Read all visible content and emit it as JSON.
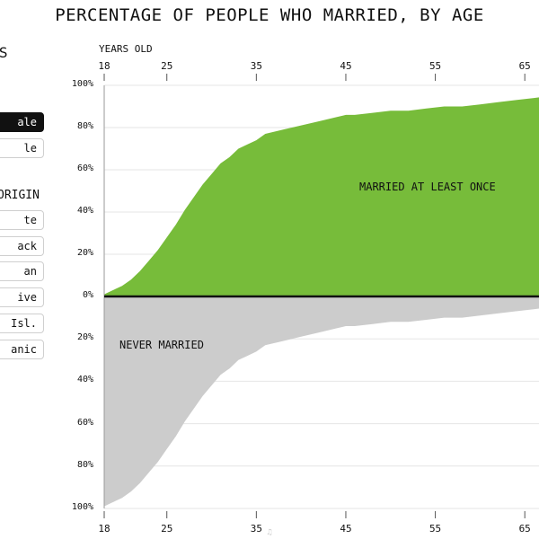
{
  "title": "PERCENTAGE OF PEOPLE WHO MARRIED, BY AGE",
  "sidebar": {
    "states_heading": "ATES",
    "sex_buttons": [
      {
        "label": "ale",
        "selected": true
      },
      {
        "label": "le",
        "selected": false
      }
    ],
    "origin_heading": "ORIGIN",
    "origin_buttons": [
      {
        "label": "te"
      },
      {
        "label": "ack"
      },
      {
        "label": "an"
      },
      {
        "label": "ive"
      },
      {
        "label": "Isl."
      },
      {
        "label": "anic"
      }
    ]
  },
  "chart_data": {
    "type": "area",
    "title": "PERCENTAGE OF PEOPLE WHO MARRIED, BY AGE",
    "xlabel": "YEARS OLD",
    "xlim": [
      18,
      70
    ],
    "x_ticks": [
      18,
      25,
      35,
      45,
      55,
      65
    ],
    "ylim": [
      0,
      100
    ],
    "y_ticks": [
      "100%",
      "80%",
      "60%",
      "40%",
      "20%",
      "0%",
      "20%",
      "40%",
      "60%",
      "80%",
      "100%"
    ],
    "grid": true,
    "series": [
      {
        "name": "MARRIED AT LEAST ONCE",
        "color": "#77bc3a"
      },
      {
        "name": "NEVER MARRIED",
        "color": "#cccccc"
      }
    ],
    "x": [
      18,
      19,
      20,
      21,
      22,
      23,
      24,
      25,
      26,
      27,
      28,
      29,
      30,
      31,
      32,
      33,
      34,
      35,
      36,
      38,
      40,
      42,
      44,
      45,
      46,
      48,
      50,
      52,
      54,
      56,
      58,
      60,
      62,
      64,
      66,
      68,
      70
    ],
    "married_at_least_once": [
      1,
      3,
      5,
      8,
      12,
      17,
      22,
      28,
      34,
      41,
      47,
      53,
      58,
      63,
      66,
      70,
      72,
      74,
      77,
      79,
      81,
      83,
      85,
      86,
      86,
      87,
      88,
      88,
      89,
      90,
      90,
      91,
      92,
      93,
      94,
      95,
      95
    ],
    "never_married": [
      99,
      97,
      95,
      92,
      88,
      83,
      78,
      72,
      66,
      59,
      53,
      47,
      42,
      37,
      34,
      30,
      28,
      26,
      23,
      21,
      19,
      17,
      15,
      14,
      14,
      13,
      12,
      12,
      11,
      10,
      10,
      9,
      8,
      7,
      6,
      5,
      5
    ]
  },
  "watermark": "♫"
}
